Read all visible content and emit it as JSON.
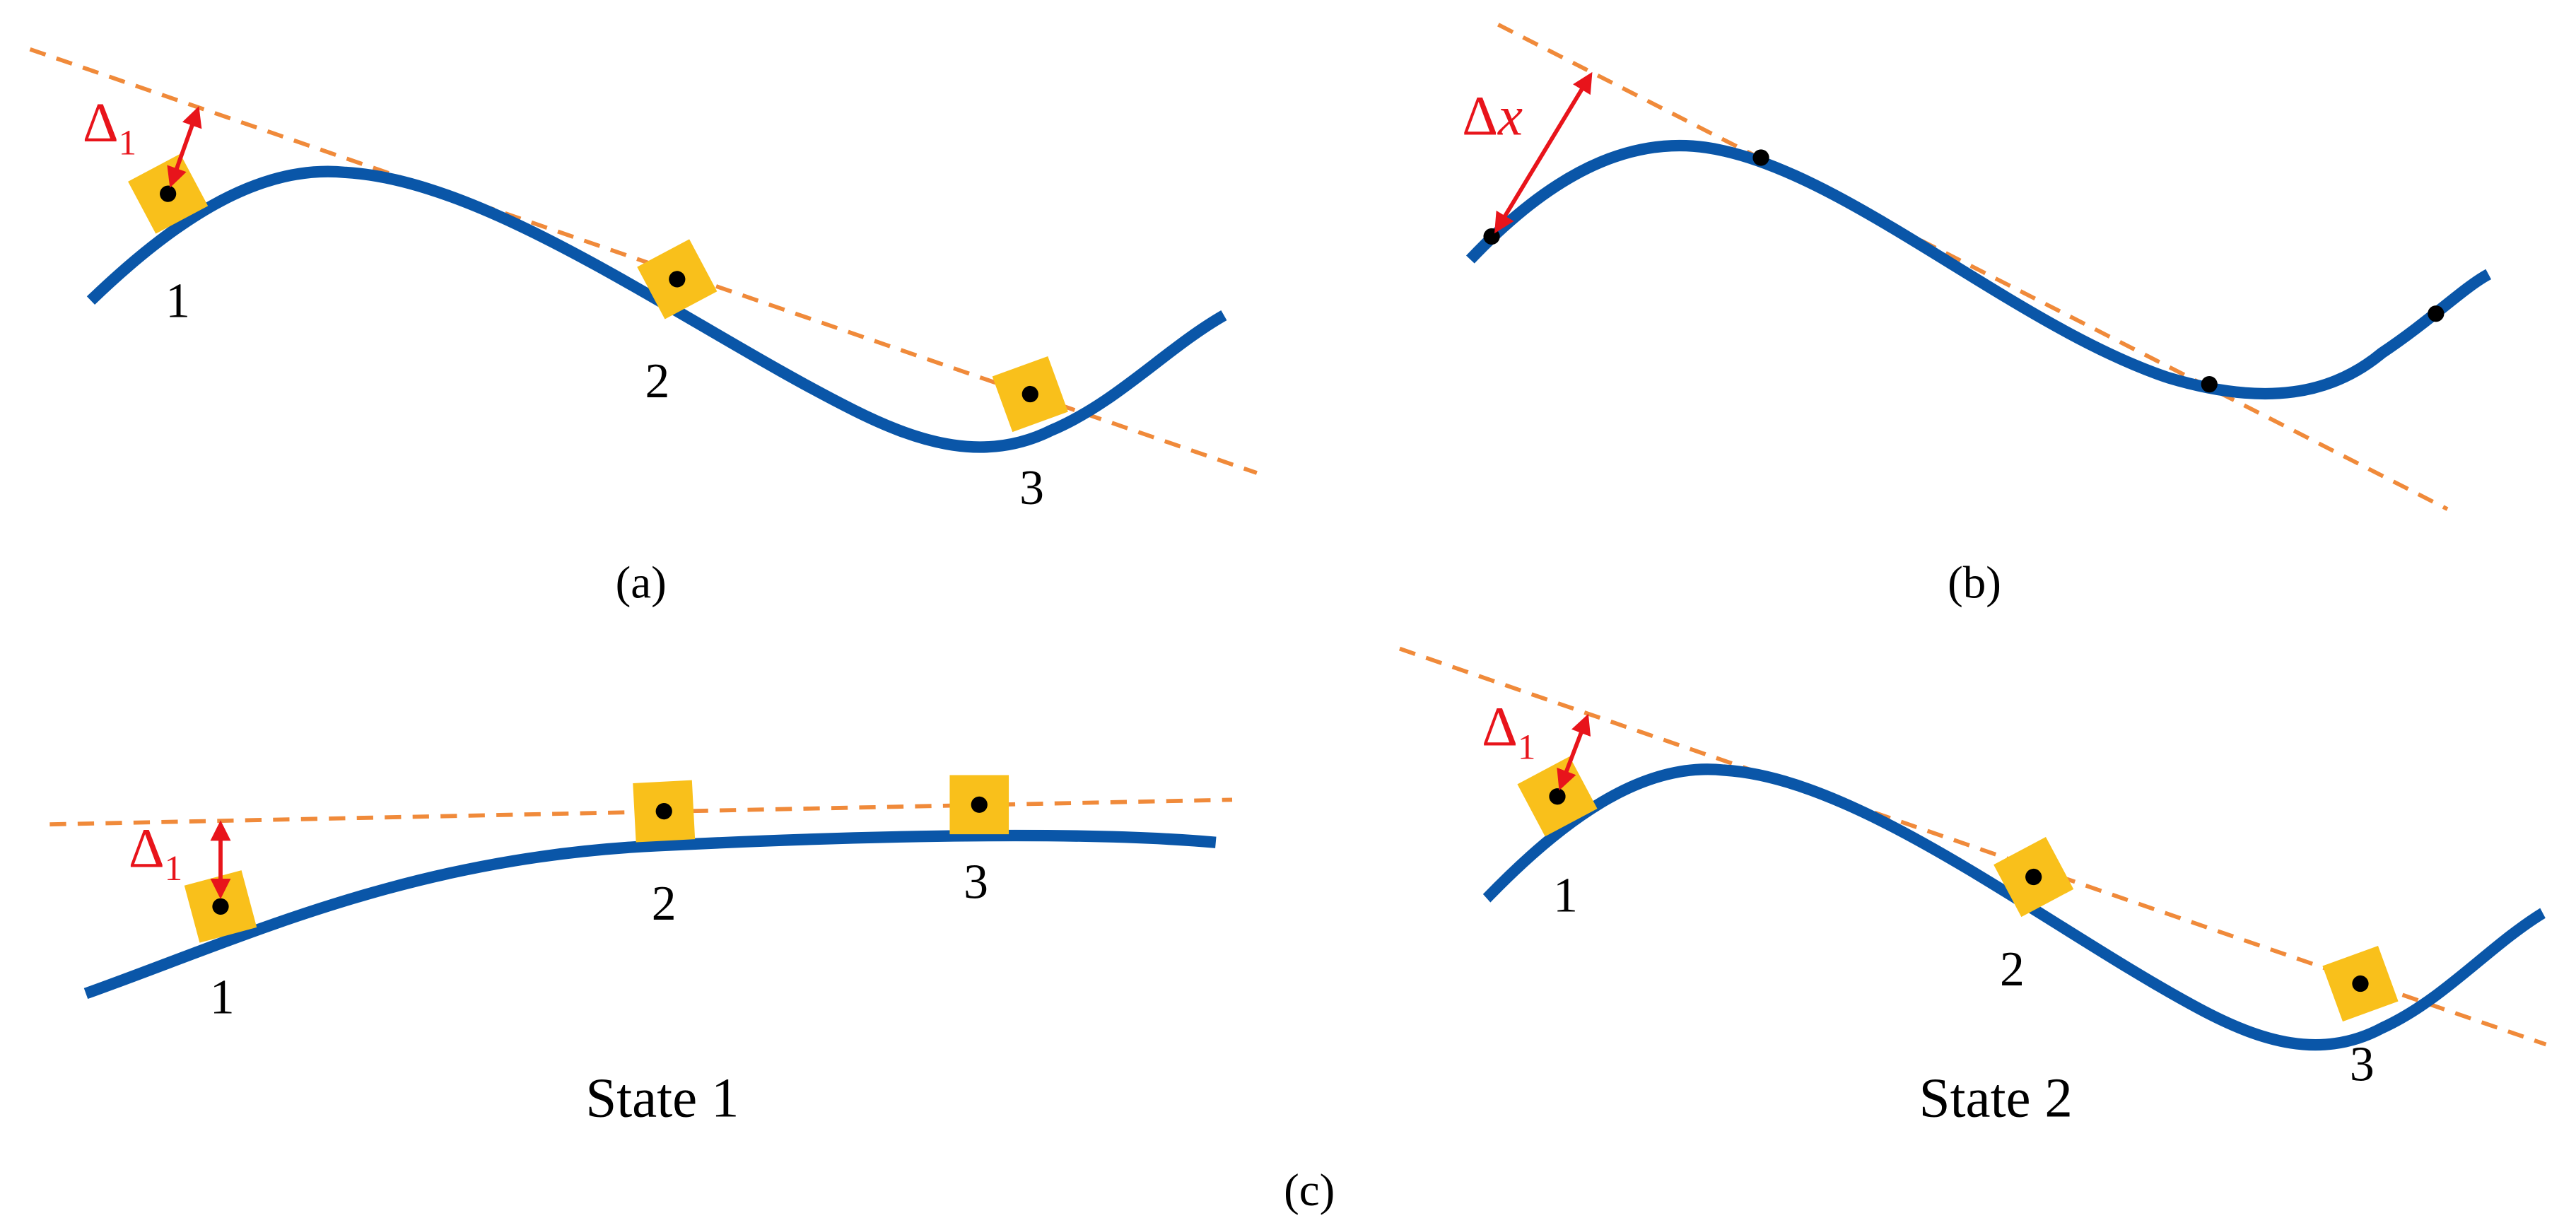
{
  "panels": [
    {
      "caption": "(a)",
      "delta": {
        "symbol": "Δ",
        "subscript": "1"
      },
      "points": [
        "1",
        "2",
        "3"
      ]
    },
    {
      "caption": "(b)",
      "delta": {
        "symbol": "Δ",
        "variable": "x"
      }
    },
    {
      "caption": "(c)",
      "states": [
        {
          "title": "State 1",
          "delta": {
            "symbol": "Δ",
            "subscript": "1"
          },
          "points": [
            "1",
            "2",
            "3"
          ]
        },
        {
          "title": "State 2",
          "delta": {
            "symbol": "Δ",
            "subscript": "1"
          },
          "points": [
            "1",
            "2",
            "3"
          ]
        }
      ]
    }
  ]
}
